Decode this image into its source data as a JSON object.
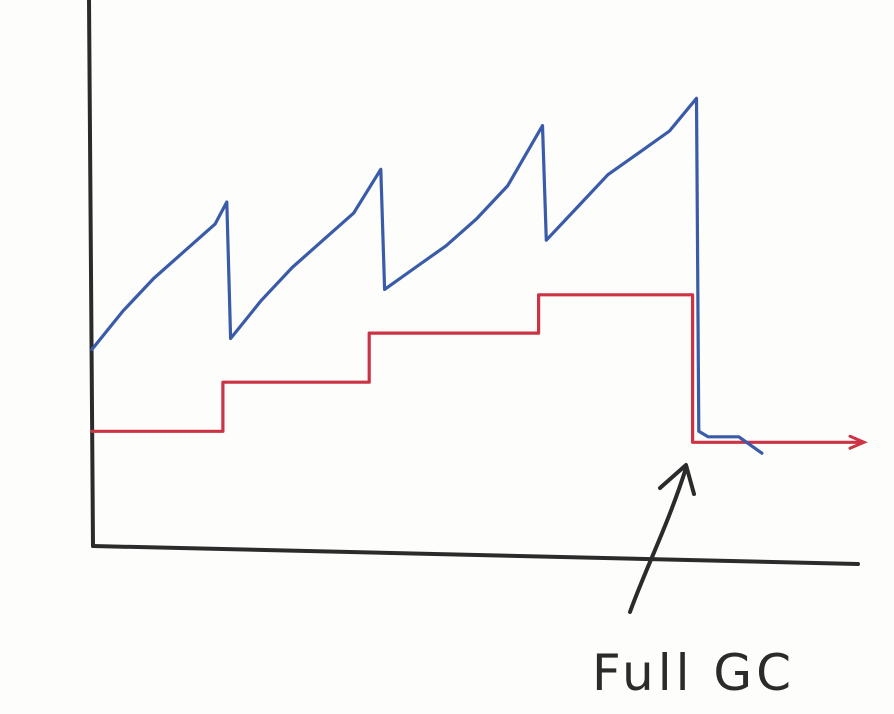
{
  "chart_data": {
    "type": "line",
    "title": "",
    "xlabel": "",
    "ylabel": "",
    "grid": false,
    "xlim": [
      0,
      100
    ],
    "ylim": [
      0,
      100
    ],
    "series": [
      {
        "color": "#3a5ba8",
        "x": [
          0,
          4,
          8,
          12,
          16,
          17.5,
          18,
          22,
          26,
          30,
          34,
          37.5,
          38,
          42,
          46,
          50,
          54,
          58.5,
          59,
          63,
          67,
          71,
          75,
          78.5,
          78.8,
          80,
          84,
          87
        ],
        "y": [
          36,
          43,
          49,
          54,
          59,
          63,
          38,
          45,
          51,
          56,
          61,
          69,
          47,
          51,
          55,
          60,
          66,
          77,
          56,
          62,
          68,
          72,
          76,
          82,
          21,
          20,
          20,
          17
        ]
      },
      {
        "color": "#cc3344",
        "x": [
          0,
          17,
          17,
          36,
          36,
          58,
          58,
          78,
          78,
          100
        ],
        "y": [
          21,
          21,
          30,
          30,
          39,
          39,
          46,
          46,
          19,
          19
        ]
      }
    ],
    "annotations": [
      {
        "text": "Full GC",
        "x": 78,
        "y": 19
      }
    ]
  }
}
